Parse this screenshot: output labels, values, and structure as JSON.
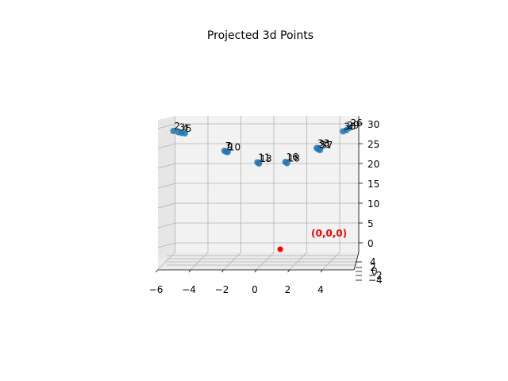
{
  "chart_data": {
    "type": "scatter",
    "projection": "3d",
    "title": "Projected 3d Points",
    "xlim": [
      -7,
      5
    ],
    "ylim": [
      -4,
      4
    ],
    "zlim": [
      -4,
      31
    ],
    "x_ticks": [
      "−6",
      "−4",
      "−2",
      "0",
      "2",
      "4"
    ],
    "z_ticks": [
      "0",
      "5",
      "10",
      "15",
      "20",
      "25",
      "30"
    ],
    "y_ticks": [
      "4",
      "2",
      "0",
      "−2",
      "−4"
    ],
    "grid": true,
    "series_color": "#1f77b4",
    "origin_color": "#ff0000",
    "origin": {
      "x": 0,
      "y": 0,
      "z": 0,
      "label": "(0,0,0)"
    },
    "points": [
      {
        "label": "2",
        "x": -6.1,
        "z": 28.2
      },
      {
        "label": "3",
        "x": -5.8,
        "z": 27.9
      },
      {
        "label": "4",
        "x": -5.6,
        "z": 27.7
      },
      {
        "label": "5",
        "x": -5.4,
        "z": 27.6
      },
      {
        "label": "7",
        "x": -3.0,
        "z": 23.2
      },
      {
        "label": "9",
        "x": -2.9,
        "z": 23.0
      },
      {
        "label": "10",
        "x": -2.8,
        "z": 22.9
      },
      {
        "label": "11",
        "x": -1.0,
        "z": 20.3
      },
      {
        "label": "13",
        "x": -0.9,
        "z": 20.0
      },
      {
        "label": "16",
        "x": 0.7,
        "z": 20.4
      },
      {
        "label": "18",
        "x": 0.8,
        "z": 20.1
      },
      {
        "label": "33",
        "x": 2.6,
        "z": 23.9
      },
      {
        "label": "31",
        "x": 2.7,
        "z": 23.6
      },
      {
        "label": "37",
        "x": 2.8,
        "z": 23.4
      },
      {
        "label": "26",
        "x": 4.6,
        "z": 29.0
      },
      {
        "label": "29",
        "x": 4.4,
        "z": 28.4
      },
      {
        "label": "30",
        "x": 4.2,
        "z": 28.1
      }
    ]
  }
}
